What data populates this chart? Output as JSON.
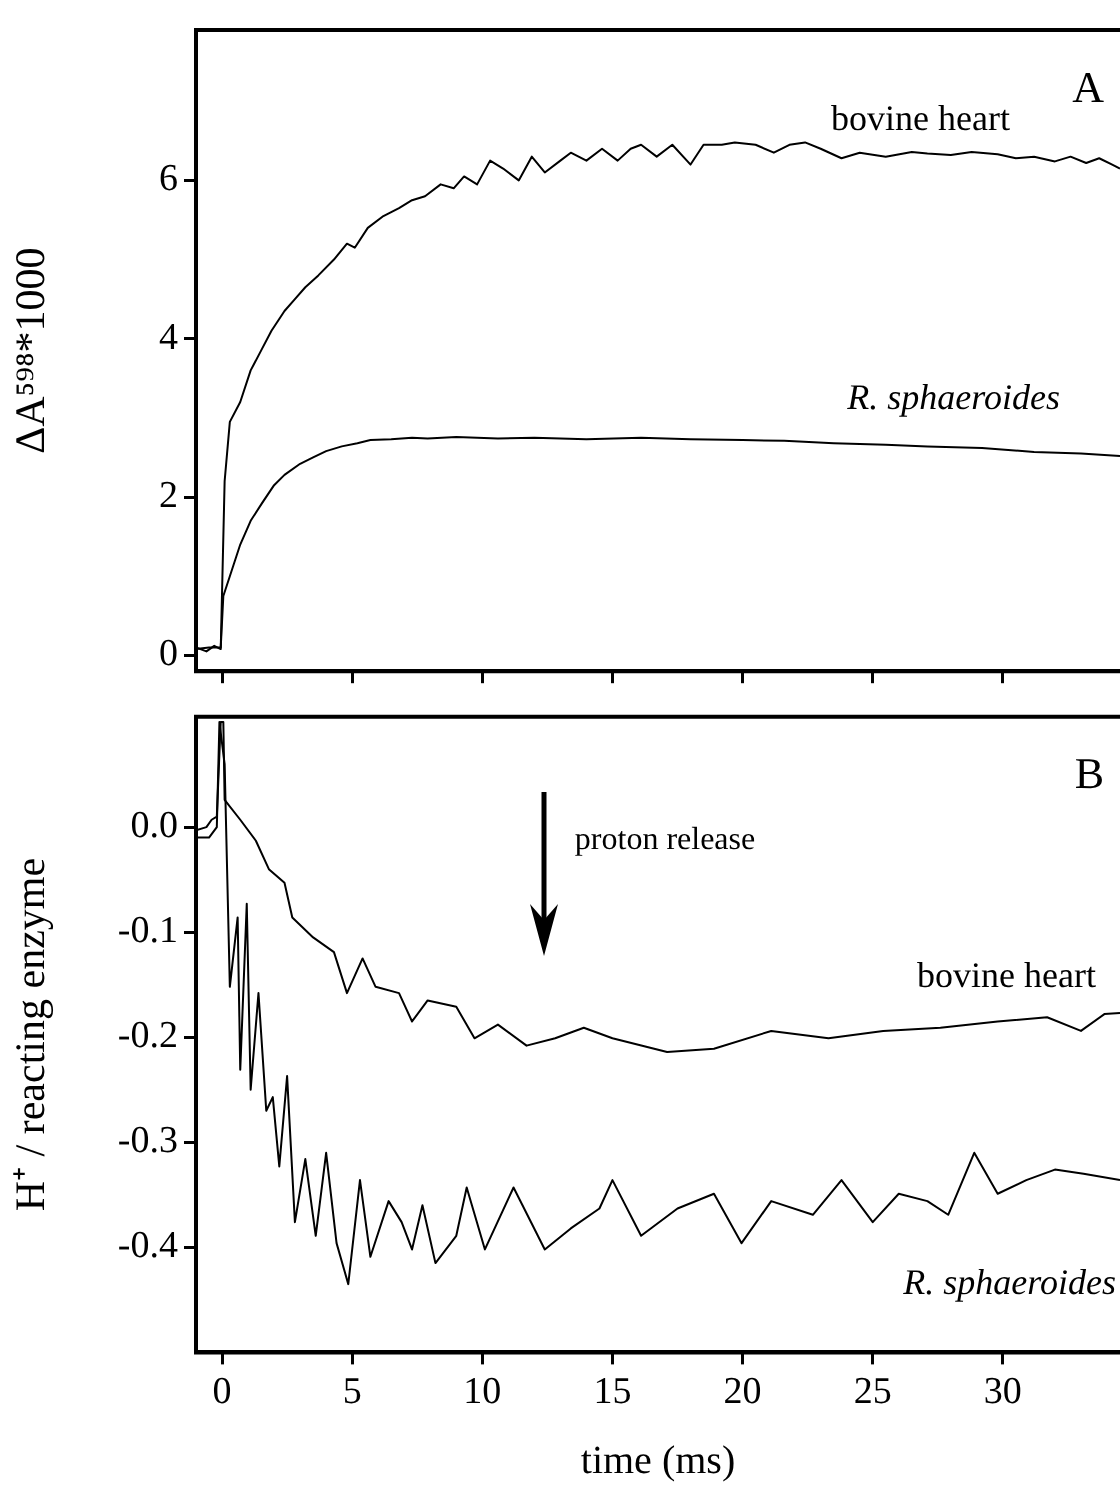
{
  "chart_data": [
    {
      "type": "line",
      "ylabel": "ΔA⁵⁹⁸*1000",
      "annotations": [
        "A"
      ],
      "xlim": [
        -1,
        34.5
      ],
      "ylim": [
        -0.2,
        7.9
      ],
      "xticks": [
        0,
        5,
        10,
        15,
        20,
        25,
        30
      ],
      "yticks": [
        0,
        2,
        4,
        6
      ],
      "tick_labels": "y",
      "grid": false,
      "legend": false,
      "series": [
        {
          "name": "bovine heart",
          "color": "#000000",
          "x": [
            -1,
            -0.6,
            -0.3,
            -0.05,
            0.1,
            0.3,
            0.7,
            1.1,
            1.5,
            1.9,
            2.4,
            2.8,
            3.2,
            3.7,
            4.3,
            4.8,
            5.1,
            5.6,
            6.2,
            6.8,
            7.3,
            7.8,
            8.4,
            8.9,
            9.3,
            9.8,
            10.3,
            10.8,
            11.4,
            11.9,
            12.4,
            13.0,
            13.4,
            14.0,
            14.6,
            15.2,
            15.7,
            16.1,
            16.7,
            17.3,
            18.0,
            18.5,
            19.2,
            19.7,
            20.5,
            21.2,
            21.8,
            22.4,
            23.0,
            23.8,
            24.5,
            25.5,
            26.5,
            27.1,
            28.0,
            28.8,
            29.8,
            30.5,
            31.2,
            32.0,
            32.6,
            33.2,
            33.7,
            34.2,
            34.5
          ],
          "values": [
            0.1,
            0.05,
            0.12,
            0.08,
            2.2,
            2.95,
            3.2,
            3.6,
            3.85,
            4.1,
            4.35,
            4.5,
            4.65,
            4.8,
            5.0,
            5.2,
            5.15,
            5.4,
            5.55,
            5.65,
            5.75,
            5.8,
            5.95,
            5.9,
            6.05,
            5.95,
            6.25,
            6.15,
            6.0,
            6.3,
            6.1,
            6.25,
            6.35,
            6.25,
            6.4,
            6.25,
            6.4,
            6.45,
            6.3,
            6.45,
            6.2,
            6.45,
            6.45,
            6.48,
            6.45,
            6.35,
            6.45,
            6.48,
            6.4,
            6.28,
            6.35,
            6.3,
            6.36,
            6.34,
            6.32,
            6.36,
            6.33,
            6.28,
            6.3,
            6.24,
            6.3,
            6.22,
            6.28,
            6.2,
            6.15
          ]
        },
        {
          "name": "R. sphaeroides",
          "color": "#000000",
          "x": [
            -1,
            -0.5,
            -0.05,
            0.05,
            0.3,
            0.7,
            1.1,
            1.55,
            2.0,
            2.4,
            3.0,
            3.5,
            4.0,
            4.6,
            5.2,
            5.7,
            6.5,
            7.3,
            7.9,
            9.0,
            10.6,
            12,
            14,
            16.1,
            18,
            20,
            21.6,
            23.5,
            25.5,
            27.1,
            29.2,
            31.2,
            33,
            34.5
          ],
          "values": [
            0.08,
            0.1,
            0.1,
            0.75,
            1.0,
            1.4,
            1.7,
            1.93,
            2.15,
            2.28,
            2.42,
            2.5,
            2.58,
            2.64,
            2.68,
            2.72,
            2.73,
            2.75,
            2.74,
            2.76,
            2.74,
            2.75,
            2.73,
            2.75,
            2.73,
            2.72,
            2.71,
            2.68,
            2.66,
            2.64,
            2.62,
            2.57,
            2.55,
            2.52
          ]
        }
      ]
    },
    {
      "type": "line",
      "xlabel": "time (ms)",
      "ylabel": "H⁺ / reacting enzyme",
      "annotations": [
        "B",
        "proton release"
      ],
      "xlim": [
        -1,
        34.5
      ],
      "ylim": [
        -0.5,
        0.105
      ],
      "xticks": [
        0,
        5,
        10,
        15,
        20,
        25,
        30
      ],
      "yticks": [
        -0.4,
        -0.3,
        -0.2,
        -0.1,
        {
          "value": 0,
          "label": "0.0"
        }
      ],
      "grid": false,
      "legend": false,
      "series": [
        {
          "name": "bovine heart",
          "color": "#000000",
          "x": [
            -1,
            -0.6,
            -0.4,
            -0.2,
            -0.05,
            0.05,
            0.1,
            0.7,
            1.3,
            1.8,
            2.4,
            2.7,
            3.5,
            4.3,
            4.8,
            5.4,
            5.9,
            6.8,
            7.3,
            7.9,
            9.0,
            9.7,
            10.6,
            11.7,
            12.8,
            13.9,
            15.0,
            17.1,
            18.9,
            21.1,
            23.3,
            25.4,
            27.6,
            29.8,
            31.7,
            33.0,
            33.9,
            34.5
          ],
          "values": [
            -0.003,
            0.0,
            0.007,
            0.01,
            0.1,
            0.1,
            0.026,
            0.007,
            -0.013,
            -0.04,
            -0.053,
            -0.086,
            -0.105,
            -0.119,
            -0.158,
            -0.125,
            -0.152,
            -0.158,
            -0.185,
            -0.165,
            -0.171,
            -0.201,
            -0.188,
            -0.208,
            -0.201,
            -0.191,
            -0.201,
            -0.214,
            -0.211,
            -0.194,
            -0.201,
            -0.194,
            -0.191,
            -0.185,
            -0.181,
            -0.194,
            -0.178,
            -0.177
          ]
        },
        {
          "name": "R. sphaeroides",
          "color": "#000000",
          "x": [
            -1,
            -0.5,
            -0.2,
            -0.1,
            0.1,
            0.3,
            0.6,
            0.7,
            0.95,
            1.1,
            1.4,
            1.7,
            1.95,
            2.2,
            2.5,
            2.8,
            3.2,
            3.6,
            4.0,
            4.4,
            4.85,
            5.3,
            5.7,
            6.4,
            6.9,
            7.3,
            7.7,
            8.2,
            9.0,
            9.4,
            10.1,
            11.2,
            12.4,
            13.4,
            14.5,
            15.0,
            16.1,
            17.5,
            18.9,
            19.96,
            21.1,
            22.7,
            23.8,
            25.0,
            26.0,
            27.1,
            27.9,
            28.9,
            29.8,
            30.9,
            32.0,
            33.1,
            34.5
          ],
          "values": [
            -0.01,
            -0.01,
            0.0,
            0.1,
            0.06,
            -0.152,
            -0.086,
            -0.231,
            -0.073,
            -0.25,
            -0.158,
            -0.27,
            -0.257,
            -0.323,
            -0.237,
            -0.376,
            -0.316,
            -0.389,
            -0.31,
            -0.396,
            -0.435,
            -0.336,
            -0.409,
            -0.356,
            -0.376,
            -0.402,
            -0.36,
            -0.415,
            -0.389,
            -0.343,
            -0.402,
            -0.343,
            -0.402,
            -0.382,
            -0.363,
            -0.336,
            -0.389,
            -0.363,
            -0.349,
            -0.396,
            -0.356,
            -0.369,
            -0.336,
            -0.376,
            -0.349,
            -0.356,
            -0.369,
            -0.31,
            -0.349,
            -0.336,
            -0.326,
            -0.33,
            -0.336
          ]
        }
      ]
    }
  ]
}
